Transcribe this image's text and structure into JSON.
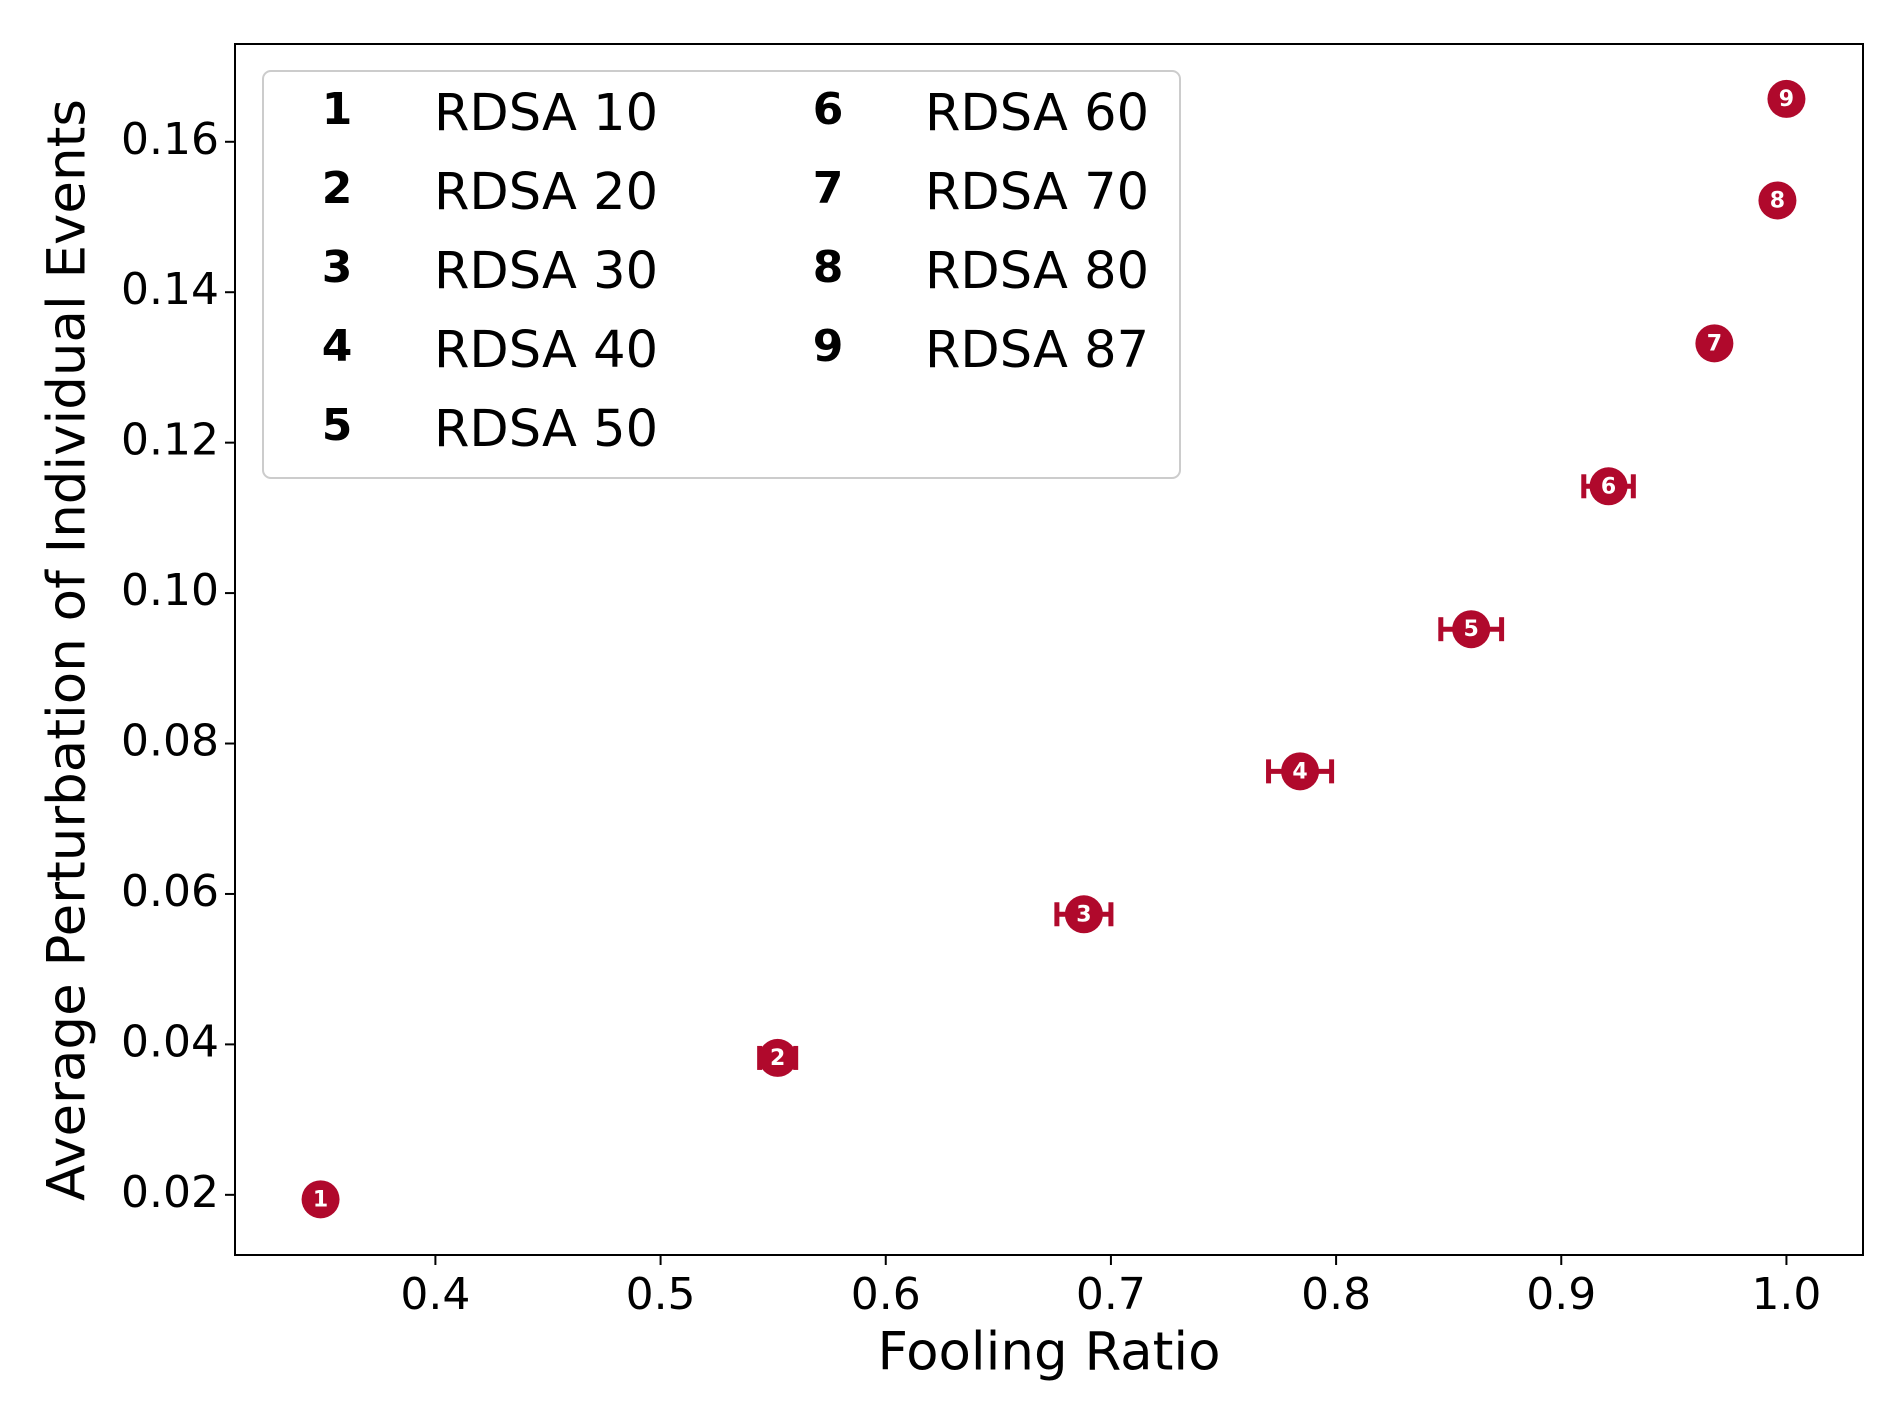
{
  "chart_data": {
    "type": "scatter",
    "x_label": "Fooling Ratio",
    "y_label": "Average Perturbation of Individual Events",
    "x": [
      0.349,
      0.552,
      0.688,
      0.784,
      0.86,
      0.921,
      0.968,
      0.996,
      1.0
    ],
    "values": [
      0.0194,
      0.0382,
      0.0573,
      0.0763,
      0.0952,
      0.1142,
      0.1332,
      0.1522,
      0.1657
    ],
    "xerr": [
      0.002,
      0.008,
      0.012,
      0.014,
      0.0135,
      0.011,
      0.003,
      0.002,
      0.002
    ],
    "labels": [
      "1",
      "2",
      "3",
      "4",
      "5",
      "6",
      "7",
      "8",
      "9"
    ],
    "names": [
      "RDSA 10",
      "RDSA 20",
      "RDSA 30",
      "RDSA 40",
      "RDSA 50",
      "RDSA 60",
      "RDSA 70",
      "RDSA 80",
      "RDSA 87"
    ],
    "color": "#b0092c",
    "xlim": [
      0.311,
      1.034
    ],
    "ylim": [
      0.012,
      0.173
    ],
    "xticks": [
      0.4,
      0.5,
      0.6,
      0.7,
      0.8,
      0.9,
      {
        "value": 1.0,
        "label": "1.0"
      }
    ],
    "yticks": [
      0.02,
      0.04,
      0.06,
      0.08,
      {
        "value": 0.1,
        "label": "0.10"
      },
      0.12,
      0.14,
      0.16
    ],
    "legend": "upper left",
    "grid": false
  }
}
